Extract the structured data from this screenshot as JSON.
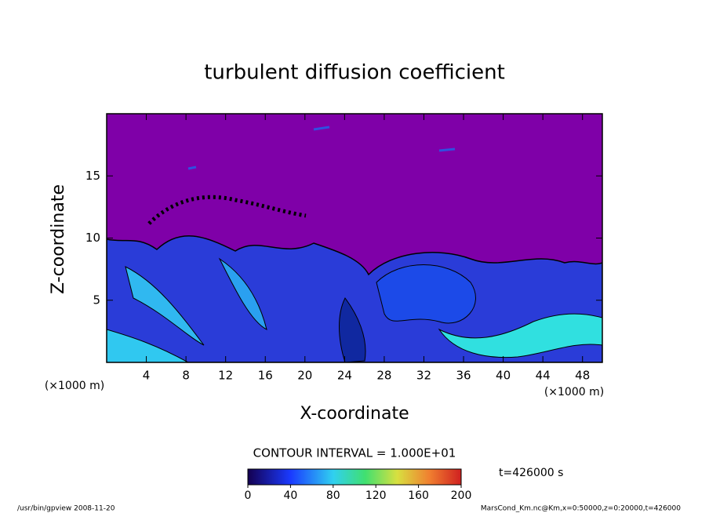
{
  "chart_data": {
    "type": "contour",
    "title": "turbulent diffusion coefficient",
    "x_label": "X-coordinate",
    "y_label": "Z-coordinate",
    "x_unit": "(×1000 m)",
    "y_unit": "(×1000 m)",
    "xlim": [
      0,
      50
    ],
    "xticks": [
      4,
      8,
      12,
      16,
      20,
      24,
      28,
      32,
      36,
      40,
      44,
      48
    ],
    "ylim": [
      0,
      20
    ],
    "yticks": [
      5,
      10,
      15
    ],
    "contour_interval": "CONTOUR INTERVAL = 1.000E+01",
    "colorbar": {
      "lim": [
        0,
        200
      ],
      "ticks": [
        0,
        40,
        80,
        120,
        160,
        200
      ]
    },
    "time": "t=426000 s",
    "footer_left": "/usr/bin/gpview  2008-11-20",
    "footer_right": "MarsCond_Km.nc@Km,x=0:50000,z=0:20000,t=426000"
  }
}
